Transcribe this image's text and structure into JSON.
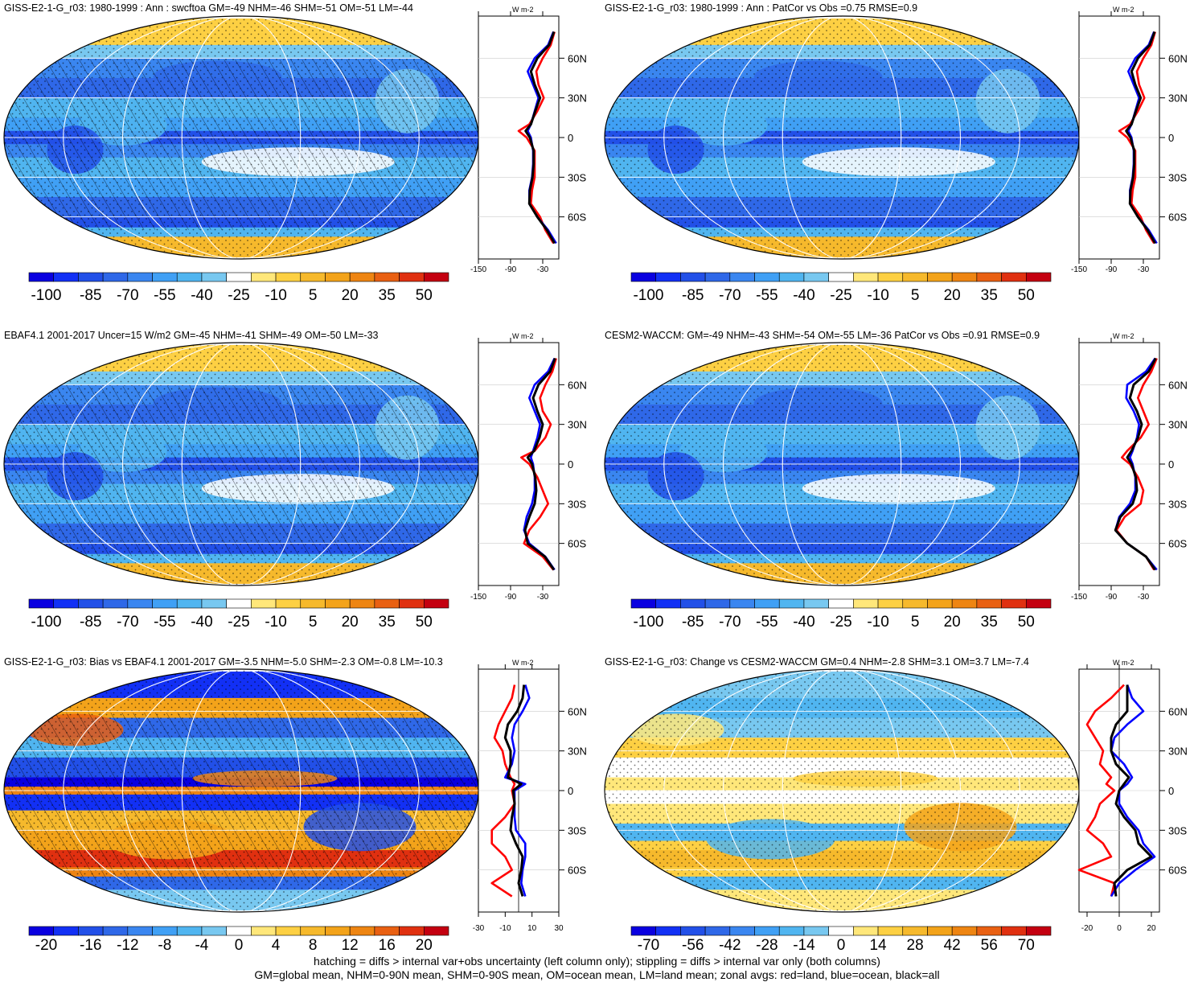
{
  "chart_data": [
    {
      "type": "heatmap",
      "title": "GISS-E2-1-G_r03: 1980-1999 : Ann : swcftoa GM=-49 NHM=-46 SHM=-51 OM=-51 LM=-44",
      "colorbar_labels": [
        "-100",
        "-85",
        "-70",
        "-55",
        "-40",
        "-25",
        "-10",
        "5",
        "20",
        "35",
        "50"
      ],
      "colorbar_range": [
        -105,
        55
      ],
      "zonal_ticks": [
        "-150",
        "-90",
        "-30"
      ],
      "zonal_xlim": [
        -150,
        0
      ],
      "zonal_units": "W m-2",
      "latitude_labels": [
        "60N",
        "30N",
        "0",
        "30S",
        "60S"
      ],
      "hatched": true,
      "zonal_series": [
        {
          "color": "#ff0000",
          "lat": [
            80,
            70,
            60,
            50,
            40,
            30,
            20,
            10,
            5,
            0,
            -10,
            -20,
            -30,
            -40,
            -50,
            -60,
            -70,
            -80
          ],
          "values": [
            -8,
            -15,
            -30,
            -42,
            -38,
            -28,
            -40,
            -55,
            -75,
            -60,
            -45,
            -45,
            -45,
            -50,
            -52,
            -35,
            -25,
            -10
          ]
        },
        {
          "color": "#0000ff",
          "lat": [
            80,
            70,
            60,
            50,
            40,
            30,
            20,
            10,
            5,
            0,
            -10,
            -20,
            -30,
            -40,
            -50,
            -60,
            -70,
            -80
          ],
          "values": [
            -10,
            -20,
            -45,
            -58,
            -48,
            -38,
            -45,
            -52,
            -58,
            -52,
            -48,
            -48,
            -50,
            -55,
            -55,
            -40,
            -20,
            -5
          ]
        },
        {
          "color": "#000000",
          "lat": [
            80,
            70,
            60,
            50,
            40,
            30,
            20,
            10,
            5,
            0,
            -10,
            -20,
            -30,
            -40,
            -50,
            -60,
            -70,
            -80
          ],
          "values": [
            -9,
            -18,
            -40,
            -52,
            -45,
            -35,
            -44,
            -52,
            -62,
            -54,
            -47,
            -47,
            -49,
            -54,
            -55,
            -40,
            -22,
            -8
          ]
        }
      ]
    },
    {
      "type": "heatmap",
      "title": "GISS-E2-1-G_r03: 1980-1999 : Ann : PatCor vs Obs =0.75 RMSE=0.9",
      "colorbar_labels": [
        "-100",
        "-85",
        "-70",
        "-55",
        "-40",
        "-25",
        "-10",
        "5",
        "20",
        "35",
        "50"
      ],
      "colorbar_range": [
        -105,
        55
      ],
      "zonal_ticks": [
        "-150",
        "-90",
        "-30"
      ],
      "zonal_xlim": [
        -150,
        0
      ],
      "zonal_units": "W m-2",
      "latitude_labels": [
        "60N",
        "30N",
        "0",
        "30S",
        "60S"
      ],
      "hatched": false,
      "zonal_series": [
        {
          "color": "#ff0000",
          "lat": [
            80,
            70,
            60,
            50,
            40,
            30,
            20,
            10,
            5,
            0,
            -10,
            -20,
            -30,
            -40,
            -50,
            -60,
            -70,
            -80
          ],
          "values": [
            -8,
            -15,
            -30,
            -42,
            -38,
            -28,
            -40,
            -55,
            -75,
            -60,
            -45,
            -45,
            -45,
            -50,
            -52,
            -35,
            -25,
            -10
          ]
        },
        {
          "color": "#0000ff",
          "lat": [
            80,
            70,
            60,
            50,
            40,
            30,
            20,
            10,
            5,
            0,
            -10,
            -20,
            -30,
            -40,
            -50,
            -60,
            -70,
            -80
          ],
          "values": [
            -10,
            -20,
            -45,
            -58,
            -48,
            -38,
            -45,
            -52,
            -58,
            -52,
            -48,
            -48,
            -50,
            -55,
            -55,
            -40,
            -20,
            -5
          ]
        },
        {
          "color": "#000000",
          "lat": [
            80,
            70,
            60,
            50,
            40,
            30,
            20,
            10,
            5,
            0,
            -10,
            -20,
            -30,
            -40,
            -50,
            -60,
            -70,
            -80
          ],
          "values": [
            -9,
            -18,
            -40,
            -52,
            -45,
            -35,
            -44,
            -52,
            -62,
            -54,
            -47,
            -47,
            -49,
            -54,
            -55,
            -40,
            -22,
            -8
          ]
        }
      ]
    },
    {
      "type": "heatmap",
      "title": "EBAF4.1 2001-2017 Uncer=15 W/m2 GM=-45 NHM=-41 SHM=-49 OM=-50 LM=-33",
      "colorbar_labels": [
        "-100",
        "-85",
        "-70",
        "-55",
        "-40",
        "-25",
        "-10",
        "5",
        "20",
        "35",
        "50"
      ],
      "colorbar_range": [
        -105,
        55
      ],
      "zonal_ticks": [
        "-150",
        "-90",
        "-30"
      ],
      "zonal_xlim": [
        -150,
        0
      ],
      "zonal_units": "W m-2",
      "latitude_labels": [
        "60N",
        "30N",
        "0",
        "30S",
        "60S"
      ],
      "hatched": true,
      "zonal_series": [
        {
          "color": "#ff0000",
          "lat": [
            80,
            70,
            60,
            50,
            40,
            30,
            20,
            10,
            5,
            0,
            -10,
            -20,
            -30,
            -40,
            -50,
            -60,
            -70,
            -80
          ],
          "values": [
            -5,
            -12,
            -25,
            -35,
            -30,
            -15,
            -25,
            -45,
            -70,
            -55,
            -40,
            -30,
            -20,
            -35,
            -55,
            -65,
            -30,
            -10
          ]
        },
        {
          "color": "#0000ff",
          "lat": [
            80,
            70,
            60,
            50,
            40,
            30,
            20,
            10,
            5,
            0,
            -10,
            -20,
            -30,
            -40,
            -50,
            -60,
            -70,
            -80
          ],
          "values": [
            -8,
            -20,
            -45,
            -55,
            -45,
            -35,
            -40,
            -48,
            -52,
            -48,
            -45,
            -45,
            -50,
            -60,
            -65,
            -55,
            -25,
            -8
          ]
        },
        {
          "color": "#000000",
          "lat": [
            80,
            70,
            60,
            50,
            40,
            30,
            20,
            10,
            5,
            0,
            -10,
            -20,
            -30,
            -40,
            -50,
            -60,
            -70,
            -80
          ],
          "values": [
            -7,
            -16,
            -38,
            -48,
            -40,
            -30,
            -36,
            -46,
            -58,
            -50,
            -44,
            -42,
            -45,
            -55,
            -63,
            -58,
            -26,
            -9
          ]
        }
      ]
    },
    {
      "type": "heatmap",
      "title": "CESM2-WACCM: GM=-49 NHM=-43 SHM=-54 OM=-55 LM=-36 PatCor vs Obs =0.91 RMSE=0.9",
      "colorbar_labels": [
        "-100",
        "-85",
        "-70",
        "-55",
        "-40",
        "-25",
        "-10",
        "5",
        "20",
        "35",
        "50"
      ],
      "colorbar_range": [
        -105,
        55
      ],
      "zonal_ticks": [
        "-150",
        "-90",
        "-30"
      ],
      "zonal_xlim": [
        -150,
        0
      ],
      "zonal_units": "W m-2",
      "latitude_labels": [
        "60N",
        "30N",
        "0",
        "30S",
        "60S"
      ],
      "hatched": false,
      "zonal_series": [
        {
          "color": "#ff0000",
          "lat": [
            80,
            70,
            60,
            50,
            40,
            30,
            20,
            10,
            5,
            0,
            -10,
            -20,
            -30,
            -40,
            -50,
            -60,
            -70,
            -80
          ],
          "values": [
            -5,
            -15,
            -30,
            -40,
            -30,
            -20,
            -35,
            -60,
            -70,
            -55,
            -40,
            -30,
            -35,
            -65,
            -80,
            -60,
            -25,
            -10
          ]
        },
        {
          "color": "#0000ff",
          "lat": [
            80,
            70,
            60,
            50,
            40,
            30,
            20,
            10,
            5,
            0,
            -10,
            -20,
            -30,
            -40,
            -50,
            -60,
            -70,
            -80
          ],
          "values": [
            -8,
            -25,
            -60,
            -62,
            -48,
            -38,
            -42,
            -50,
            -55,
            -50,
            -45,
            -45,
            -55,
            -75,
            -82,
            -60,
            -25,
            -5
          ]
        },
        {
          "color": "#000000",
          "lat": [
            80,
            70,
            60,
            50,
            40,
            30,
            20,
            10,
            5,
            0,
            -10,
            -20,
            -30,
            -40,
            -50,
            -60,
            -70,
            -80
          ],
          "values": [
            -7,
            -20,
            -48,
            -55,
            -42,
            -33,
            -40,
            -52,
            -60,
            -52,
            -44,
            -42,
            -50,
            -73,
            -82,
            -60,
            -25,
            -8
          ]
        }
      ]
    },
    {
      "type": "heatmap",
      "title": "GISS-E2-1-G_r03: Bias vs EBAF4.1 2001-2017 GM=-3.5 NHM=-5.0 SHM=-2.3 OM=-0.8 LM=-10.3",
      "colorbar_labels": [
        "-20",
        "-16",
        "-12",
        "-8",
        "-4",
        "0",
        "4",
        "8",
        "12",
        "16",
        "20"
      ],
      "colorbar_range": [
        -22,
        22
      ],
      "zonal_ticks": [
        "-30",
        "-10",
        "10",
        "30"
      ],
      "zonal_xlim": [
        -30,
        30
      ],
      "zonal_units": "W m-2",
      "latitude_labels": [
        "60N",
        "30N",
        "0",
        "30S",
        "60S"
      ],
      "hatched": true,
      "zonal_series": [
        {
          "color": "#ff0000",
          "lat": [
            80,
            70,
            60,
            50,
            40,
            30,
            20,
            10,
            5,
            0,
            -10,
            -20,
            -30,
            -40,
            -50,
            -60,
            -70,
            -80
          ],
          "values": [
            -3,
            -5,
            -10,
            -15,
            -18,
            -12,
            -10,
            -6,
            -3,
            -5,
            -3,
            -10,
            -20,
            -20,
            -10,
            -5,
            -20,
            -5
          ]
        },
        {
          "color": "#0000ff",
          "lat": [
            80,
            70,
            60,
            50,
            40,
            30,
            20,
            10,
            5,
            0,
            -10,
            -20,
            -30,
            -40,
            -50,
            -60,
            -70,
            -80
          ],
          "values": [
            5,
            8,
            3,
            -3,
            -5,
            -3,
            -5,
            -10,
            5,
            -3,
            -3,
            -3,
            -2,
            5,
            5,
            3,
            2,
            5
          ]
        },
        {
          "color": "#000000",
          "lat": [
            80,
            70,
            60,
            50,
            40,
            30,
            20,
            10,
            5,
            0,
            -10,
            -20,
            -30,
            -40,
            -50,
            -60,
            -70,
            -80
          ],
          "values": [
            4,
            3,
            -1,
            -8,
            -10,
            -6,
            -6,
            -8,
            2,
            -4,
            -3,
            -5,
            -6,
            -2,
            3,
            2,
            0,
            3
          ]
        }
      ]
    },
    {
      "type": "heatmap",
      "title": "GISS-E2-1-G_r03: Change vs CESM2-WACCM GM=0.4 NHM=-2.8 SHM=3.1 OM=3.7 LM=-7.4",
      "colorbar_labels": [
        "-70",
        "-56",
        "-42",
        "-28",
        "-14",
        "0",
        "14",
        "28",
        "42",
        "56",
        "70"
      ],
      "colorbar_range": [
        -77,
        77
      ],
      "zonal_ticks": [
        "-20",
        "0",
        "20"
      ],
      "zonal_xlim": [
        -25,
        25
      ],
      "zonal_units": "W m-2",
      "latitude_labels": [
        "60N",
        "30N",
        "0",
        "30S",
        "60S"
      ],
      "hatched": false,
      "zonal_series": [
        {
          "color": "#ff0000",
          "lat": [
            80,
            70,
            60,
            50,
            40,
            30,
            20,
            10,
            5,
            0,
            -10,
            -20,
            -30,
            -40,
            -50,
            -60,
            -70,
            -80
          ],
          "values": [
            3,
            -5,
            -15,
            -20,
            -15,
            -10,
            -12,
            -5,
            -8,
            -3,
            -12,
            -15,
            -20,
            -10,
            -5,
            -25,
            -3,
            -5
          ]
        },
        {
          "color": "#0000ff",
          "lat": [
            80,
            70,
            60,
            50,
            40,
            30,
            20,
            10,
            5,
            0,
            -10,
            -20,
            -30,
            -40,
            -50,
            -60,
            -70,
            -80
          ],
          "values": [
            5,
            8,
            15,
            5,
            -3,
            -5,
            3,
            8,
            5,
            0,
            0,
            5,
            12,
            15,
            22,
            10,
            0,
            -5
          ]
        },
        {
          "color": "#000000",
          "lat": [
            80,
            70,
            60,
            50,
            40,
            30,
            20,
            10,
            5,
            0,
            -10,
            -20,
            -30,
            -40,
            -50,
            -60,
            -70,
            -80
          ],
          "values": [
            5,
            5,
            5,
            -2,
            -5,
            -5,
            -2,
            6,
            3,
            0,
            -2,
            3,
            10,
            12,
            20,
            5,
            -3,
            -2
          ]
        }
      ]
    }
  ],
  "footer": {
    "line1": "hatching = diffs > internal var+obs uncertainty (left column only); stippling = diffs > internal var only (both columns)",
    "line2": "GM=global mean, NHM=0-90N mean, SHM=0-90S mean, OM=ocean mean, LM=land mean; zonal avgs: red=land, blue=ocean, black=all"
  },
  "colors": {
    "palette_blue_red": [
      "#0a00e0",
      "#1230f5",
      "#2250e8",
      "#2f68e8",
      "#3a86f0",
      "#40a0f5",
      "#50b5f0",
      "#78c8f0",
      "#ffffff",
      "#ffe77a",
      "#fdd043",
      "#f6b92c",
      "#f3a31a",
      "#ee8512",
      "#e96012",
      "#e03010",
      "#c40010"
    ]
  }
}
